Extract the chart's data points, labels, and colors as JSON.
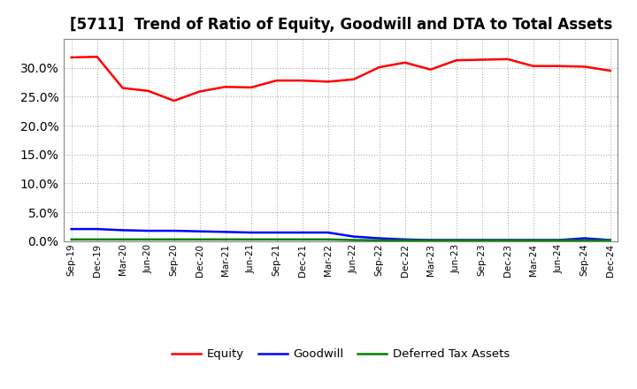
{
  "title": "[5711]  Trend of Ratio of Equity, Goodwill and DTA to Total Assets",
  "x_labels": [
    "Sep-19",
    "Dec-19",
    "Mar-20",
    "Jun-20",
    "Sep-20",
    "Dec-20",
    "Mar-21",
    "Jun-21",
    "Sep-21",
    "Dec-21",
    "Mar-22",
    "Jun-22",
    "Sep-22",
    "Dec-22",
    "Mar-23",
    "Jun-23",
    "Sep-23",
    "Dec-23",
    "Mar-24",
    "Jun-24",
    "Sep-24",
    "Dec-24"
  ],
  "equity": [
    31.8,
    31.9,
    26.5,
    26.0,
    24.3,
    25.9,
    26.7,
    26.6,
    27.8,
    27.8,
    27.6,
    28.0,
    30.1,
    30.9,
    29.7,
    31.3,
    31.4,
    31.5,
    30.3,
    30.3,
    30.2,
    29.5
  ],
  "goodwill": [
    2.1,
    2.1,
    1.9,
    1.8,
    1.8,
    1.7,
    1.6,
    1.5,
    1.5,
    1.5,
    1.5,
    0.8,
    0.5,
    0.3,
    0.2,
    0.2,
    0.2,
    0.2,
    0.2,
    0.2,
    0.5,
    0.2
  ],
  "dta": [
    0.3,
    0.3,
    0.3,
    0.3,
    0.3,
    0.3,
    0.3,
    0.3,
    0.3,
    0.3,
    0.3,
    0.2,
    0.15,
    0.15,
    0.15,
    0.15,
    0.15,
    0.15,
    0.15,
    0.15,
    0.15,
    0.15
  ],
  "equity_color": "#ff0000",
  "goodwill_color": "#0000ff",
  "dta_color": "#008000",
  "ylim": [
    0,
    35
  ],
  "yticks": [
    0.0,
    5.0,
    10.0,
    15.0,
    20.0,
    25.0,
    30.0
  ],
  "background_color": "#ffffff",
  "grid_color": "#b0b0b0",
  "title_fontsize": 12,
  "legend_labels": [
    "Equity",
    "Goodwill",
    "Deferred Tax Assets"
  ],
  "linewidth": 1.8
}
